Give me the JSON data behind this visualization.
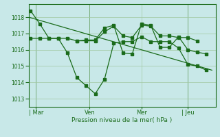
{
  "background_color": "#c8e8e8",
  "grid_color": "#a0c8a0",
  "line_color": "#1a6b1a",
  "marker_color": "#1a6b1a",
  "text_color": "#1a6b1a",
  "xlabel_text": "Pression niveau de la mer( hPa )",
  "yticks": [
    1013,
    1014,
    1015,
    1016,
    1017,
    1018
  ],
  "ylim": [
    1012.5,
    1018.8
  ],
  "day_labels": [
    "| Mar",
    "Ven",
    "Mer",
    "| Jeu"
  ],
  "day_positions": [
    0.3,
    3.2,
    6.0,
    8.5
  ],
  "day_vlines": [
    0.3,
    3.2,
    8.5
  ],
  "xlim": [
    -0.1,
    10.0
  ],
  "series_big_dip": {
    "x": [
      0.0,
      0.5,
      1.0,
      1.5,
      2.0,
      2.5,
      3.0,
      3.5,
      4.0,
      4.5,
      5.0,
      5.5,
      6.0,
      6.5,
      7.0,
      7.5,
      8.0,
      8.5,
      9.0,
      9.5
    ],
    "y": [
      1018.4,
      1017.6,
      1016.7,
      1016.7,
      1015.8,
      1014.3,
      1013.8,
      1013.3,
      1014.2,
      1016.4,
      1016.5,
      1016.5,
      1016.8,
      1016.5,
      1016.5,
      1016.5,
      1016.1,
      1015.1,
      1015.0,
      1014.75
    ]
  },
  "series_flat_upper": {
    "x": [
      0.0,
      0.5,
      1.0,
      1.5,
      2.0,
      2.5,
      3.0,
      3.5,
      4.0,
      4.5,
      5.0,
      5.5,
      6.0,
      6.5,
      7.0,
      7.5,
      8.0,
      8.5,
      9.0
    ],
    "y": [
      1016.7,
      1016.7,
      1016.7,
      1016.7,
      1016.7,
      1016.55,
      1016.55,
      1016.55,
      1017.1,
      1017.45,
      1016.85,
      1016.75,
      1017.5,
      1017.45,
      1016.85,
      1016.85,
      1016.75,
      1016.75,
      1016.55
    ]
  },
  "series_zigzag": {
    "x": [
      2.5,
      3.0,
      3.5,
      4.0,
      4.5,
      5.0,
      5.5,
      6.0,
      6.5,
      7.0,
      7.5,
      8.0,
      8.5,
      9.0,
      9.5
    ],
    "y": [
      1016.55,
      1016.6,
      1016.6,
      1017.35,
      1017.5,
      1015.8,
      1015.75,
      1017.6,
      1017.5,
      1016.15,
      1016.15,
      1016.8,
      1016.0,
      1015.85,
      1015.75
    ]
  },
  "trend_line": {
    "x": [
      -0.1,
      9.8
    ],
    "y": [
      1018.0,
      1014.75
    ]
  }
}
